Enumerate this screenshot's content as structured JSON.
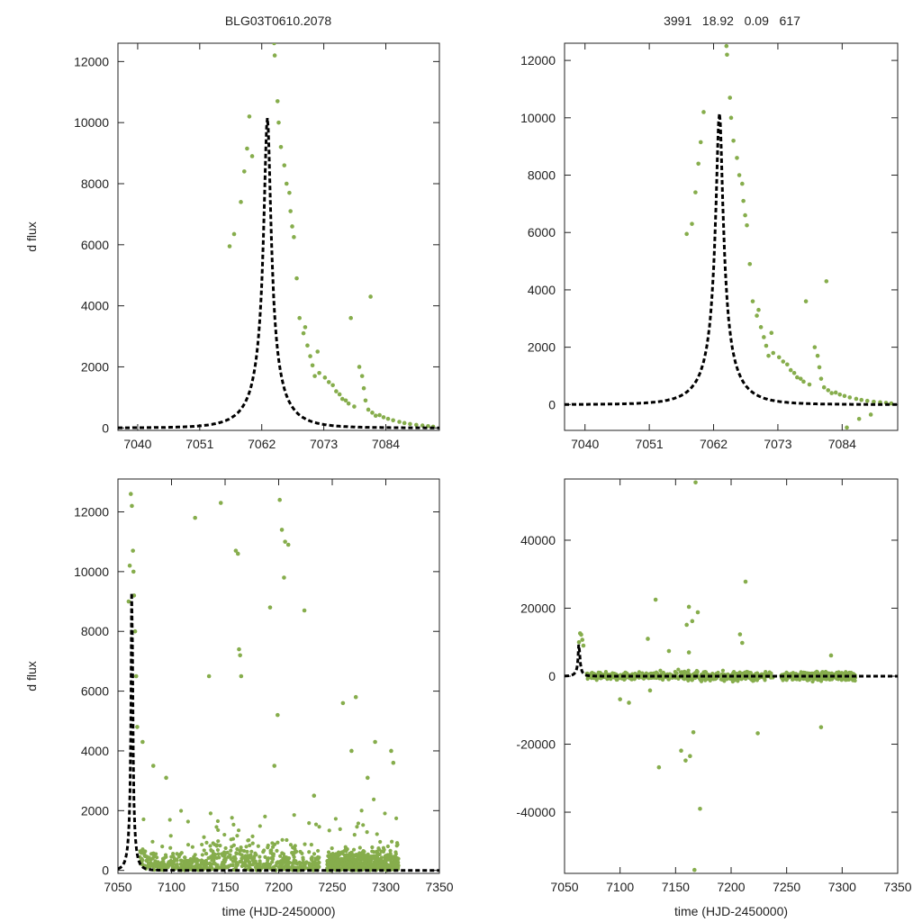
{
  "figure": {
    "title_left": "BLG03T0610.2078",
    "title_right": "3991   18.92   0.09   617",
    "ylabel": "d flux",
    "xlabel": "time (HJD-2450000)"
  },
  "colors": {
    "data": "#86ad4c",
    "model": "#000000",
    "axes": "#222222"
  },
  "model": {
    "t0": 7063,
    "peak": 10150,
    "tE": 6,
    "u0": 0.1
  },
  "chart_data": [
    {
      "id": "top-left",
      "type": "scatter",
      "xlim": [
        7036.5,
        7093.5
      ],
      "ylim": [
        -80,
        12600
      ],
      "xticks": [
        7040,
        7051,
        7062,
        7073,
        7084
      ],
      "yticks": [
        0,
        2000,
        4000,
        6000,
        8000,
        10000,
        12000
      ],
      "ylabel": "d flux",
      "xlabel": "",
      "series": [
        {
          "name": "observed",
          "x": [
            7056.3,
            7057.1,
            7058.3,
            7058.9,
            7059.4,
            7059.8,
            7060.3,
            7064.2,
            7064.3,
            7064.8,
            7065,
            7065.4,
            7066,
            7066.4,
            7066.9,
            7067.1,
            7067.4,
            7067.7,
            7068.2,
            7068.7,
            7069.4,
            7069.7,
            7070.1,
            7070.6,
            7071,
            7071.4,
            7071.9,
            7072.2,
            7073.2,
            7073.9,
            7074.6,
            7075.2,
            7075.8,
            7076.3,
            7076.9,
            7077.4,
            7077.8,
            7078.4,
            7079.3,
            7079.8,
            7080.1,
            7080.4,
            7080.9,
            7081.3,
            7081.6,
            7082.2,
            7082.9,
            7083.6,
            7084.4,
            7085.3,
            7086.4,
            7087.3,
            7088.3,
            7089.4,
            7090.5,
            7091.5,
            7092.4
          ],
          "y": [
            5950,
            6350,
            7400,
            8400,
            9150,
            10200,
            8900,
            12600,
            12200,
            10700,
            10000,
            9200,
            8600,
            8000,
            7700,
            7100,
            6600,
            6250,
            4900,
            3600,
            3100,
            3300,
            2700,
            2350,
            2050,
            1700,
            2500,
            1800,
            1650,
            1500,
            1400,
            1200,
            1100,
            950,
            900,
            800,
            3600,
            700,
            2000,
            1700,
            1300,
            900,
            600,
            4300,
            500,
            400,
            420,
            350,
            300,
            250,
            200,
            160,
            130,
            100,
            80,
            60,
            40
          ]
        }
      ]
    },
    {
      "id": "top-right",
      "type": "scatter",
      "xlim": [
        7036.5,
        7093.5
      ],
      "ylim": [
        -900,
        12600
      ],
      "xticks": [
        7040,
        7051,
        7062,
        7073,
        7084
      ],
      "yticks": [
        0,
        2000,
        4000,
        6000,
        8000,
        10000,
        12000
      ],
      "ylabel": "",
      "xlabel": "",
      "series": [
        {
          "name": "observed",
          "x": [
            7057.4,
            7058.3,
            7058.9,
            7059.4,
            7059.8,
            7060.3,
            7064.2,
            7064.3,
            7064.8,
            7065,
            7065.4,
            7066,
            7066.4,
            7066.9,
            7067.1,
            7067.4,
            7067.7,
            7068.2,
            7068.7,
            7069.4,
            7069.7,
            7070.1,
            7070.6,
            7071,
            7071.4,
            7071.9,
            7072.2,
            7073.2,
            7073.9,
            7074.6,
            7075.2,
            7075.8,
            7076.3,
            7076.9,
            7077.4,
            7077.8,
            7078.4,
            7079.3,
            7079.8,
            7080.1,
            7080.4,
            7080.9,
            7081.3,
            7081.6,
            7082.2,
            7082.9,
            7083.6,
            7084.4,
            7085.3,
            7086.4,
            7087.3,
            7088.3,
            7089.4,
            7090.5,
            7091.5,
            7092.4,
            7084.8,
            7086.9,
            7088.9
          ],
          "y": [
            5950,
            6300,
            7400,
            8400,
            9150,
            10200,
            12500,
            12200,
            10700,
            10000,
            9200,
            8600,
            8000,
            7700,
            7100,
            6600,
            6250,
            4900,
            3600,
            3100,
            3300,
            2700,
            2350,
            2050,
            1700,
            2500,
            1800,
            1650,
            1500,
            1400,
            1200,
            1100,
            950,
            900,
            800,
            3600,
            700,
            2000,
            1700,
            1300,
            900,
            600,
            4300,
            500,
            400,
            420,
            350,
            300,
            250,
            200,
            160,
            130,
            100,
            80,
            60,
            40,
            -800,
            -500,
            -350
          ]
        }
      ]
    },
    {
      "id": "bottom-left",
      "type": "scatter",
      "xlim": [
        7050,
        7350
      ],
      "ylim": [
        -100,
        13100
      ],
      "xticks": [
        7050,
        7100,
        7150,
        7200,
        7250,
        7300,
        7350
      ],
      "yticks": [
        0,
        2000,
        4000,
        6000,
        8000,
        10000,
        12000
      ],
      "ylabel": "d flux",
      "xlabel": "time (HJD-2450000)",
      "season_windows": [
        [
          7070,
          7238
        ],
        [
          7245,
          7312
        ]
      ],
      "series": [
        {
          "name": "observed",
          "x": [
            7060,
            7061,
            7062,
            7063,
            7064,
            7064.5,
            7065,
            7066,
            7067,
            7068,
            7073,
            7083,
            7095,
            7122,
            7135,
            7146,
            7160,
            7162,
            7163,
            7164,
            7165,
            7192,
            7196,
            7199,
            7201,
            7203,
            7205,
            7206,
            7209,
            7224,
            7233,
            7260,
            7268,
            7272,
            7283,
            7290,
            7305,
            7307
          ],
          "y": [
            9000,
            10200,
            12600,
            12200,
            10700,
            10000,
            9200,
            8000,
            6500,
            4800,
            4300,
            3500,
            3100,
            11800,
            6500,
            12300,
            10700,
            10600,
            7400,
            7200,
            6500,
            8800,
            3500,
            5200,
            12400,
            11400,
            9800,
            11000,
            10900,
            8700,
            2500,
            5600,
            4000,
            5800,
            3100,
            4300,
            4000,
            3600
          ]
        }
      ]
    },
    {
      "id": "bottom-right",
      "type": "scatter",
      "xlim": [
        7050,
        7350
      ],
      "ylim": [
        -58000,
        58000
      ],
      "xticks": [
        7050,
        7100,
        7150,
        7200,
        7250,
        7300,
        7350
      ],
      "yticks": [
        -40000,
        -20000,
        0,
        20000,
        40000
      ],
      "ylabel": "",
      "xlabel": "time (HJD-2450000)",
      "season_windows": [
        [
          7070,
          7238
        ],
        [
          7245,
          7312
        ]
      ],
      "series": [
        {
          "name": "observed",
          "x": [
            7063,
            7064,
            7065,
            7066,
            7067,
            7100,
            7108,
            7125,
            7127,
            7132,
            7135,
            7144,
            7155,
            7159,
            7160,
            7162,
            7163,
            7165,
            7166,
            7170,
            7172,
            7168,
            7208,
            7210,
            7213,
            7224,
            7281,
            7290,
            7167,
            7162
          ],
          "y": [
            10000,
            12600,
            12200,
            10700,
            9000,
            -6800,
            -7800,
            11000,
            -4200,
            22500,
            -26800,
            7400,
            -21900,
            -24800,
            15100,
            20400,
            -23500,
            16200,
            -16500,
            18800,
            -39000,
            57000,
            12300,
            9800,
            27800,
            -16800,
            -15000,
            6100,
            -57000,
            7000
          ]
        }
      ]
    }
  ]
}
